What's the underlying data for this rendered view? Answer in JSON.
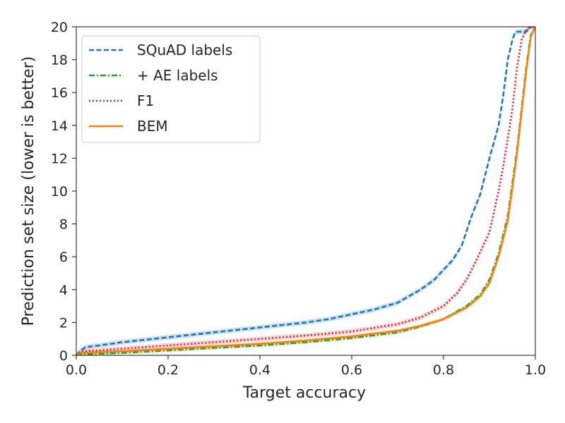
{
  "chart_data": {
    "type": "line",
    "title": "",
    "xlabel": "Target accuracy",
    "ylabel": "Prediction set size (lower is better)",
    "xlim": [
      0.0,
      1.0
    ],
    "ylim": [
      0,
      20
    ],
    "xticks": [
      0.0,
      0.2,
      0.4,
      0.6,
      0.8,
      1.0
    ],
    "xtick_labels": [
      "0.0",
      "0.2",
      "0.4",
      "0.6",
      "0.8",
      "1.0"
    ],
    "yticks": [
      0,
      2,
      4,
      6,
      8,
      10,
      12,
      14,
      16,
      18,
      20
    ],
    "ytick_labels": [
      "0",
      "2",
      "4",
      "6",
      "8",
      "10",
      "12",
      "14",
      "16",
      "18",
      "20"
    ],
    "grid": false,
    "legend_position": "top-left",
    "series": [
      {
        "name": "SQuAD labels",
        "color": "#1f77b4",
        "band_color": "#a6c8e8",
        "style": "dashed",
        "band": 0.15,
        "x": [
          0.0,
          0.01,
          0.02,
          0.05,
          0.1,
          0.2,
          0.3,
          0.4,
          0.5,
          0.55,
          0.6,
          0.65,
          0.7,
          0.75,
          0.78,
          0.8,
          0.82,
          0.84,
          0.86,
          0.88,
          0.9,
          0.92,
          0.93,
          0.94,
          0.95,
          0.955,
          0.96,
          0.97,
          0.98,
          0.99,
          1.0
        ],
        "y": [
          0.0,
          0.3,
          0.5,
          0.6,
          0.8,
          1.1,
          1.4,
          1.7,
          2.0,
          2.2,
          2.5,
          2.8,
          3.2,
          4.0,
          4.6,
          5.2,
          5.8,
          6.7,
          8.4,
          9.8,
          12.0,
          14.0,
          15.8,
          18.0,
          19.2,
          19.6,
          19.7,
          19.7,
          19.7,
          20.0,
          20.0
        ]
      },
      {
        "name": "+ AE labels",
        "color": "#2ca02c",
        "band_color": "#b3dfa8",
        "style": "dashdot",
        "band": 0.1,
        "x": [
          0.0,
          0.01,
          0.05,
          0.1,
          0.2,
          0.3,
          0.4,
          0.5,
          0.6,
          0.7,
          0.75,
          0.8,
          0.85,
          0.88,
          0.9,
          0.92,
          0.94,
          0.95,
          0.96,
          0.97,
          0.98,
          0.99,
          1.0
        ],
        "y": [
          0.0,
          0.05,
          0.1,
          0.15,
          0.3,
          0.45,
          0.6,
          0.8,
          1.05,
          1.4,
          1.75,
          2.2,
          3.0,
          3.7,
          4.6,
          6.2,
          8.5,
          10.5,
          12.5,
          15.0,
          17.5,
          19.5,
          20.0
        ]
      },
      {
        "name": "F1",
        "color": "#d62728",
        "band_color": "#f2b6bd",
        "style": "dotted",
        "band": 0.15,
        "x": [
          0.0,
          0.01,
          0.05,
          0.1,
          0.2,
          0.3,
          0.4,
          0.5,
          0.6,
          0.7,
          0.75,
          0.8,
          0.83,
          0.85,
          0.87,
          0.9,
          0.92,
          0.93,
          0.94,
          0.95,
          0.96,
          0.97,
          0.98,
          0.99,
          1.0
        ],
        "y": [
          0.0,
          0.25,
          0.3,
          0.4,
          0.6,
          0.8,
          1.0,
          1.2,
          1.45,
          1.9,
          2.3,
          3.0,
          3.8,
          4.6,
          5.7,
          7.5,
          10.0,
          11.5,
          13.2,
          15.0,
          17.5,
          19.2,
          19.8,
          20.0,
          20.0
        ]
      },
      {
        "name": "BEM",
        "color": "#ff7f0e",
        "band_color": "#ffc891",
        "style": "solid",
        "band": 0.1,
        "x": [
          0.0,
          0.01,
          0.05,
          0.1,
          0.2,
          0.3,
          0.4,
          0.5,
          0.6,
          0.7,
          0.75,
          0.8,
          0.85,
          0.88,
          0.9,
          0.92,
          0.94,
          0.95,
          0.96,
          0.97,
          0.98,
          0.99,
          1.0
        ],
        "y": [
          0.0,
          0.15,
          0.2,
          0.25,
          0.4,
          0.55,
          0.7,
          0.9,
          1.15,
          1.5,
          1.8,
          2.2,
          2.9,
          3.6,
          4.4,
          6.0,
          8.2,
          10.2,
          12.3,
          14.8,
          17.3,
          19.4,
          20.0
        ]
      }
    ]
  }
}
